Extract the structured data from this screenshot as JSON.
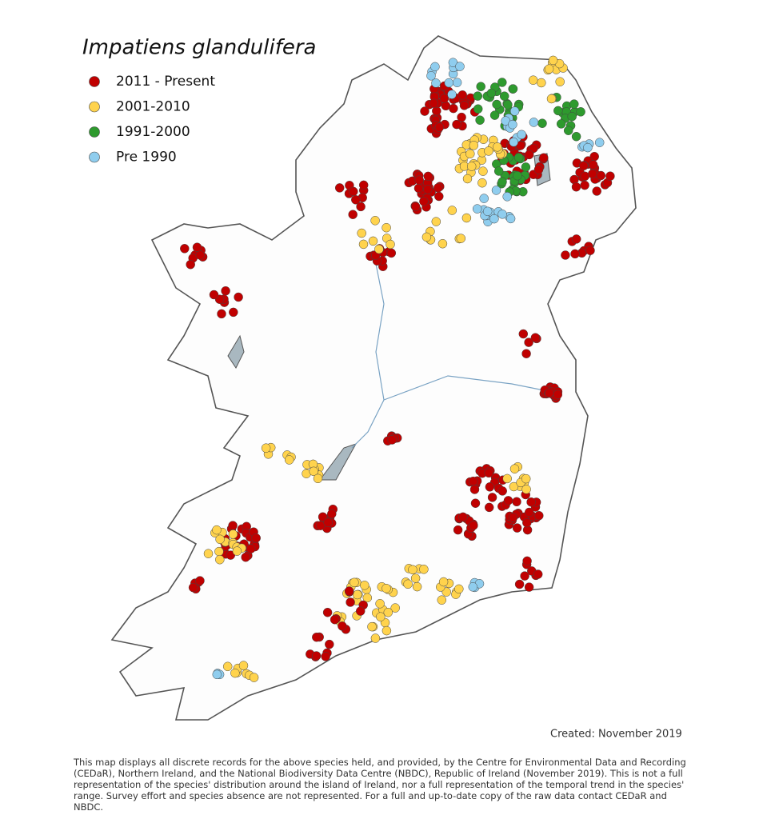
{
  "title": "Impatiens glandulifera",
  "legend": [
    {
      "label": "2011 - Present",
      "color": "#c00000"
    },
    {
      "label": "2001-2010",
      "color": "#ffd34d"
    },
    {
      "label": "1991-2000",
      "color": "#2e9a2e"
    },
    {
      "label": "Pre 1990",
      "color": "#8fcdee"
    }
  ],
  "created": "Created: November 2019",
  "footnote": "This map displays all discrete records for the above species held, and provided, by the Centre for Environmental Data and Recording (CEDaR), Northern Ireland, and the National Biodiversity Data Centre (NBDC), Republic of Ireland (November 2019). This is not a full representation of the species' distribution around the island of Ireland, nor a full representation of the temporal trend in the species' range. Survey effort and species absence are not represented. For a full and up-to-date copy of the raw data contact CEDaR and NBDC."
}
